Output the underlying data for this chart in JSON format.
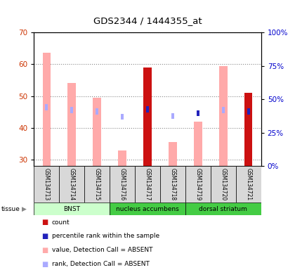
{
  "title": "GDS2344 / 1444355_at",
  "samples": [
    "GSM134713",
    "GSM134714",
    "GSM134715",
    "GSM134716",
    "GSM134717",
    "GSM134718",
    "GSM134719",
    "GSM134720",
    "GSM134721"
  ],
  "ylim_left": [
    28,
    70
  ],
  "ylim_right": [
    0,
    100
  ],
  "left_ticks": [
    30,
    40,
    50,
    60,
    70
  ],
  "right_ticks": [
    0,
    25,
    50,
    75,
    100
  ],
  "value_absent": [
    63.5,
    54.0,
    49.5,
    33.0,
    null,
    35.5,
    42.0,
    59.5,
    null
  ],
  "rank_absent_pct": [
    44.0,
    42.0,
    41.0,
    37.0,
    null,
    37.5,
    null,
    42.0,
    null
  ],
  "count_present": [
    null,
    null,
    null,
    null,
    59.0,
    null,
    null,
    null,
    51.0
  ],
  "rank_present_pct": [
    null,
    null,
    null,
    null,
    42.5,
    null,
    39.5,
    null,
    41.0
  ],
  "bar_color_value_absent": "#ffaaaa",
  "bar_color_rank_absent": "#aaaaff",
  "bar_color_count": "#cc1111",
  "bar_color_rank_present": "#2222bb",
  "left_color": "#cc3300",
  "right_color": "#0000cc",
  "tissue_defs": [
    {
      "label": "BNST",
      "start": 0,
      "end": 3,
      "color": "#ccffcc"
    },
    {
      "label": "nucleus accumbens",
      "start": 3,
      "end": 6,
      "color": "#44cc44"
    },
    {
      "label": "dorsal striatum",
      "start": 6,
      "end": 9,
      "color": "#44cc44"
    }
  ],
  "legend": [
    {
      "color": "#cc1111",
      "label": "count"
    },
    {
      "color": "#2222bb",
      "label": "percentile rank within the sample"
    },
    {
      "color": "#ffaaaa",
      "label": "value, Detection Call = ABSENT"
    },
    {
      "color": "#aaaaff",
      "label": "rank, Detection Call = ABSENT"
    }
  ]
}
